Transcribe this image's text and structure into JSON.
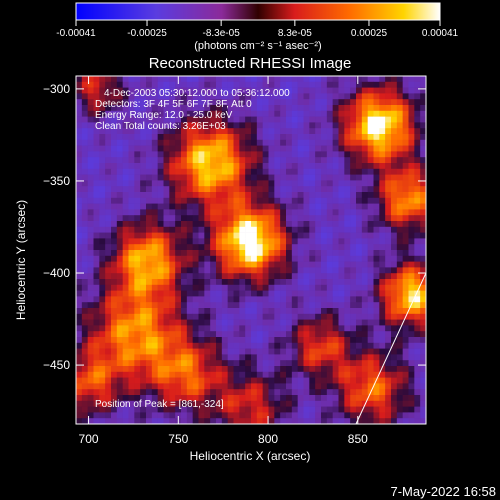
{
  "colorbar": {
    "ticks": [
      "-0.00041",
      "-0.00025",
      "-8.3e-05",
      "8.3e-05",
      "0.00025",
      "0.00041"
    ],
    "tick_values": [
      -0.00041,
      -0.00025,
      -8.3e-05,
      8.3e-05,
      0.00025,
      0.00041
    ],
    "range": [
      -0.00041,
      0.00041
    ],
    "unit_label": "(photons cm⁻² s⁻¹ asec⁻²)",
    "colors": [
      "#0000ff",
      "#6a3fd6",
      "#9a2b8a",
      "#e02020",
      "#ff7a00",
      "#ffd400",
      "#ffffff"
    ]
  },
  "chart_data": {
    "type": "heatmap",
    "title": "Reconstructed RHESSI Image",
    "xlabel": "Heliocentric X (arcsec)",
    "ylabel": "Heliocentric Y (arcsec)",
    "xlim": [
      693,
      888
    ],
    "ylim": [
      -482,
      -293
    ],
    "x_ticks": [
      700,
      750,
      800,
      850
    ],
    "y_ticks": [
      -300,
      -350,
      -400,
      -450
    ],
    "y_tick_labels": [
      "−300",
      "−350",
      "−400",
      "−450"
    ],
    "info_lines": [
      "4-Dec-2003 05:30:12.000 to 05:36:12.000",
      "Detectors: 3F 4F 5F 6F 7F 8F, Att 0",
      "Energy Range: 12.0 - 25.0 keV",
      "Clean    Total counts: 3.26E+03"
    ],
    "peak_label": "Position of Peak = [861,-324]",
    "peak": [
      861,
      -324
    ],
    "limb_line": [
      [
        888,
        -400
      ],
      [
        849,
        -482
      ]
    ],
    "sources": [
      {
        "x": 790,
        "y": -383,
        "amp": 1.0,
        "w": 14
      },
      {
        "x": 768,
        "y": -340,
        "amp": 0.85,
        "w": 16
      },
      {
        "x": 733,
        "y": -393,
        "amp": 0.75,
        "w": 14
      },
      {
        "x": 862,
        "y": -320,
        "amp": 0.95,
        "w": 14
      },
      {
        "x": 878,
        "y": -360,
        "amp": 0.7,
        "w": 12
      },
      {
        "x": 880,
        "y": -412,
        "amp": 0.85,
        "w": 12
      },
      {
        "x": 726,
        "y": -433,
        "amp": 0.7,
        "w": 18
      },
      {
        "x": 755,
        "y": -455,
        "amp": 0.55,
        "w": 14
      },
      {
        "x": 858,
        "y": -463,
        "amp": 0.6,
        "w": 14
      },
      {
        "x": 829,
        "y": -440,
        "amp": 0.5,
        "w": 12
      },
      {
        "x": 700,
        "y": -460,
        "amp": 0.5,
        "w": 12
      },
      {
        "x": 790,
        "y": -473,
        "amp": 0.45,
        "w": 14
      },
      {
        "x": 705,
        "y": -300,
        "amp": 0.45,
        "w": 10
      }
    ]
  },
  "footer": {
    "timestamp": "7-May-2022 16:58"
  }
}
